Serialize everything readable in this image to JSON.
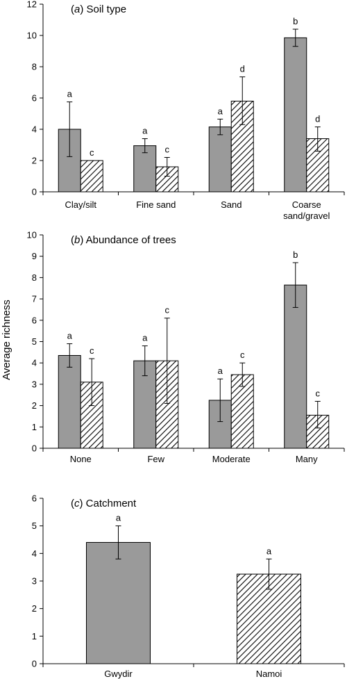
{
  "y_axis_title": "Average richness",
  "colors": {
    "gray_bar": "#9a9a9a",
    "hatch": "#000000",
    "axis": "#000000"
  },
  "chart_data": [
    {
      "type": "bar",
      "title_letter": "a",
      "title_text": "Soil type",
      "categories": [
        "Clay/silt",
        "Fine sand",
        "Sand",
        "Coarse sand/gravel"
      ],
      "category_lines": [
        [
          "Clay/silt"
        ],
        [
          "Fine sand"
        ],
        [
          "Sand"
        ],
        [
          "Coarse",
          "sand/gravel"
        ]
      ],
      "ylim": [
        0,
        12
      ],
      "yticks": [
        0,
        2,
        4,
        6,
        8,
        10,
        12
      ],
      "series": [
        {
          "pattern": "solid-gray",
          "values": [
            4.0,
            2.95,
            4.15,
            9.85
          ],
          "err_low": [
            2.25,
            2.5,
            3.65,
            9.3
          ],
          "err_high": [
            5.75,
            3.4,
            4.65,
            10.4
          ],
          "letters": [
            "a",
            "a",
            "a",
            "b"
          ]
        },
        {
          "pattern": "hatched",
          "values": [
            2.0,
            1.6,
            5.8,
            3.4
          ],
          "err_low": [
            2.0,
            1.0,
            4.3,
            2.6
          ],
          "err_high": [
            2.0,
            2.2,
            7.35,
            4.15
          ],
          "letters": [
            "c",
            "c",
            "d",
            "d"
          ]
        }
      ]
    },
    {
      "type": "bar",
      "title_letter": "b",
      "title_text": "Abundance of trees",
      "categories": [
        "None",
        "Few",
        "Moderate",
        "Many"
      ],
      "category_lines": [
        [
          "None"
        ],
        [
          "Few"
        ],
        [
          "Moderate"
        ],
        [
          "Many"
        ]
      ],
      "ylim": [
        0,
        10
      ],
      "yticks": [
        0,
        1,
        2,
        3,
        4,
        5,
        6,
        7,
        8,
        9,
        10
      ],
      "series": [
        {
          "pattern": "solid-gray",
          "values": [
            4.35,
            4.1,
            2.25,
            7.65
          ],
          "err_low": [
            3.8,
            3.4,
            1.25,
            6.6
          ],
          "err_high": [
            4.9,
            4.8,
            3.25,
            8.7
          ],
          "letters": [
            "a",
            "a",
            "a",
            "b"
          ]
        },
        {
          "pattern": "hatched",
          "values": [
            3.1,
            4.1,
            3.45,
            1.55
          ],
          "err_low": [
            2.0,
            2.1,
            2.9,
            0.95
          ],
          "err_high": [
            4.2,
            6.1,
            4.0,
            2.2
          ],
          "letters": [
            "c",
            "c",
            "c",
            "c"
          ]
        }
      ]
    },
    {
      "type": "bar",
      "title_letter": "c",
      "title_text": "Catchment",
      "categories": [
        "Gwydir",
        "Namoi"
      ],
      "category_lines": [
        [
          "Gwydir"
        ],
        [
          "Namoi"
        ]
      ],
      "ylim": [
        0,
        6
      ],
      "yticks": [
        0,
        1,
        2,
        3,
        4,
        5,
        6
      ],
      "bars": [
        {
          "pattern": "solid-gray",
          "value": 4.4,
          "err_low": 3.8,
          "err_high": 5.0,
          "letter": "a"
        },
        {
          "pattern": "hatched",
          "value": 3.25,
          "err_low": 2.7,
          "err_high": 3.8,
          "letter": "a"
        }
      ]
    }
  ]
}
